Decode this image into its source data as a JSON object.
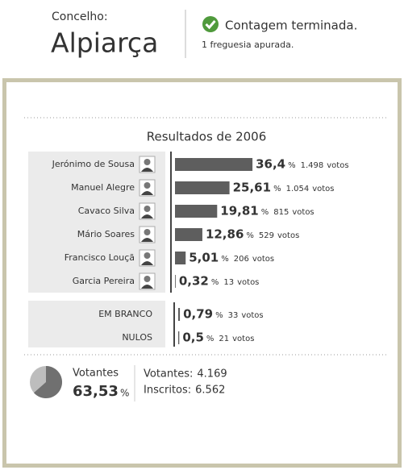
{
  "header": {
    "label": "Concelho:",
    "name": "Alpiarça",
    "status": "Contagem terminada.",
    "detail": "1 freguesia apurada."
  },
  "results": {
    "title": "Resultados de 2006",
    "percent_sign": "%",
    "votes_unit": "votos",
    "candidates": [
      {
        "name": "Jerónimo de Sousa",
        "pct": {
          "value": 36.4,
          "label": "36,4"
        },
        "votes": "1.498"
      },
      {
        "name": "Manuel Alegre",
        "pct": {
          "value": 25.61,
          "label": "25,61"
        },
        "votes": "1.054"
      },
      {
        "name": "Cavaco Silva",
        "pct": {
          "value": 19.81,
          "label": "19,81"
        },
        "votes": "815"
      },
      {
        "name": "Mário Soares",
        "pct": {
          "value": 12.86,
          "label": "12,86"
        },
        "votes": "529"
      },
      {
        "name": "Francisco Louçã",
        "pct": {
          "value": 5.01,
          "label": "5,01"
        },
        "votes": "206"
      },
      {
        "name": "Garcia Pereira",
        "pct": {
          "value": 0.32,
          "label": "0,32"
        },
        "votes": "13"
      }
    ],
    "others": [
      {
        "name": "EM BRANCO",
        "pct": {
          "value": 0.79,
          "label": "0,79"
        },
        "votes": "33"
      },
      {
        "name": "NULOS",
        "pct": {
          "value": 0.5,
          "label": "0,5"
        },
        "votes": "21"
      }
    ]
  },
  "turnout": {
    "label": "Votantes",
    "pct": {
      "value": 63.53,
      "label": "63,53"
    },
    "voters_label": "Votantes:",
    "voters": "4.169",
    "registered_label": "Inscritos:",
    "registered": "6.562"
  }
}
